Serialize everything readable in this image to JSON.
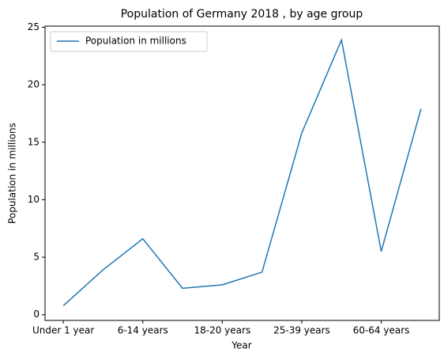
{
  "chart_data": {
    "type": "line",
    "title": "Population of Germany 2018 , by age group",
    "x_label": "Year",
    "y_label": "Population in millions",
    "categories": [
      "Under 1 year",
      null,
      "6-14 years",
      null,
      "18-20 years",
      null,
      "25-39 years",
      null,
      "60-64 years",
      null
    ],
    "series": [
      {
        "name": "Population in millions",
        "color": "#1f77b4",
        "values": [
          0.78,
          3.9,
          6.6,
          2.3,
          2.6,
          3.7,
          15.8,
          23.9,
          5.5,
          17.9
        ]
      }
    ],
    "ylim": [
      -0.5,
      25.1
    ],
    "yticks": [
      0,
      5,
      10,
      15,
      20,
      25
    ],
    "legend": "upper left",
    "grid": false
  }
}
